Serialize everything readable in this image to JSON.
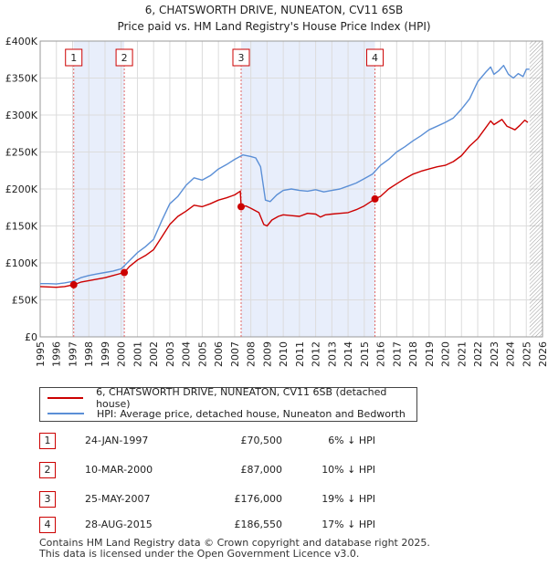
{
  "chart_data": {
    "type": "line",
    "title": "6, CHATSWORTH DRIVE, NUNEATON, CV11 6SB",
    "subtitle": "Price paid vs. HM Land Registry's House Price Index (HPI)",
    "xlabel": "",
    "ylabel": "",
    "xlim": [
      1995,
      2026
    ],
    "ylim": [
      0,
      400000
    ],
    "x_ticks": [
      "1995",
      "1996",
      "1997",
      "1998",
      "1999",
      "2000",
      "2001",
      "2002",
      "2003",
      "2004",
      "2005",
      "2006",
      "2007",
      "2008",
      "2009",
      "2010",
      "2011",
      "2012",
      "2013",
      "2014",
      "2015",
      "2016",
      "2017",
      "2018",
      "2019",
      "2020",
      "2021",
      "2022",
      "2023",
      "2024",
      "2025",
      "2026"
    ],
    "y_ticks": [
      {
        "value": 0,
        "label": "£0"
      },
      {
        "value": 50000,
        "label": "£50K"
      },
      {
        "value": 100000,
        "label": "£100K"
      },
      {
        "value": 150000,
        "label": "£150K"
      },
      {
        "value": 200000,
        "label": "£200K"
      },
      {
        "value": 250000,
        "label": "£250K"
      },
      {
        "value": 300000,
        "label": "£300K"
      },
      {
        "value": 350000,
        "label": "£350K"
      },
      {
        "value": 400000,
        "label": "£400K"
      }
    ],
    "grid": true,
    "data_end_year": 2025.2,
    "shaded_periods": [
      [
        1997.07,
        2000.19
      ],
      [
        2007.4,
        2015.66
      ]
    ],
    "series": [
      {
        "name": "6, CHATSWORTH DRIVE, NUNEATON, CV11 6SB (detached house)",
        "color": "#cc0000",
        "x": [
          1995.0,
          1995.5,
          1996.0,
          1996.5,
          1997.07,
          1997.5,
          1998.0,
          1998.5,
          1999.0,
          1999.5,
          2000.19,
          2000.5,
          2001.0,
          2001.5,
          2002.0,
          2002.5,
          2003.0,
          2003.5,
          2004.0,
          2004.5,
          2005.0,
          2005.5,
          2006.0,
          2006.5,
          2007.0,
          2007.35,
          2007.4,
          2007.7,
          2008.0,
          2008.5,
          2008.8,
          2009.0,
          2009.3,
          2009.7,
          2010.0,
          2010.5,
          2011.0,
          2011.5,
          2012.0,
          2012.3,
          2012.6,
          2013.0,
          2013.5,
          2014.0,
          2014.5,
          2015.0,
          2015.66,
          2016.0,
          2016.5,
          2017.0,
          2017.5,
          2018.0,
          2018.5,
          2019.0,
          2019.5,
          2020.0,
          2020.5,
          2021.0,
          2021.5,
          2022.0,
          2022.5,
          2022.8,
          2023.0,
          2023.5,
          2023.8,
          2024.0,
          2024.3,
          2024.6,
          2024.9,
          2025.1
        ],
        "values": [
          68000,
          67500,
          67000,
          68000,
          70500,
          74000,
          76000,
          78000,
          80000,
          83000,
          87000,
          95000,
          104000,
          110000,
          118000,
          135000,
          152000,
          163000,
          170000,
          178000,
          176000,
          180000,
          185000,
          188000,
          192000,
          197000,
          176000,
          177000,
          174000,
          168000,
          152000,
          150000,
          158000,
          163000,
          165000,
          164000,
          163000,
          167000,
          166000,
          162000,
          165000,
          166000,
          167000,
          168000,
          172000,
          177000,
          186550,
          190000,
          200000,
          207000,
          214000,
          220000,
          224000,
          227000,
          230000,
          232000,
          237000,
          245000,
          258000,
          268000,
          283000,
          292000,
          287000,
          294000,
          285000,
          283000,
          280000,
          286000,
          293000,
          290000
        ]
      },
      {
        "name": "HPI: Average price, detached house, Nuneaton and Bedworth",
        "color": "#5b8fd6",
        "x": [
          1995.0,
          1995.5,
          1996.0,
          1996.5,
          1997.0,
          1997.5,
          1998.0,
          1998.5,
          1999.0,
          1999.5,
          2000.0,
          2000.5,
          2001.0,
          2001.5,
          2002.0,
          2002.5,
          2003.0,
          2003.5,
          2004.0,
          2004.5,
          2005.0,
          2005.5,
          2006.0,
          2006.5,
          2007.0,
          2007.5,
          2008.0,
          2008.3,
          2008.6,
          2008.9,
          2009.2,
          2009.6,
          2010.0,
          2010.5,
          2011.0,
          2011.5,
          2012.0,
          2012.5,
          2013.0,
          2013.5,
          2014.0,
          2014.5,
          2015.0,
          2015.5,
          2016.0,
          2016.5,
          2017.0,
          2017.5,
          2018.0,
          2018.5,
          2019.0,
          2019.5,
          2020.0,
          2020.5,
          2021.0,
          2021.5,
          2022.0,
          2022.5,
          2022.8,
          2023.0,
          2023.3,
          2023.6,
          2023.9,
          2024.2,
          2024.5,
          2024.8,
          2025.0,
          2025.2
        ],
        "values": [
          72000,
          72000,
          71500,
          73000,
          75000,
          80000,
          83000,
          85000,
          87000,
          89000,
          92000,
          103000,
          114000,
          122000,
          132000,
          157000,
          180000,
          190000,
          205000,
          215000,
          212000,
          218000,
          227000,
          233000,
          240000,
          246000,
          244000,
          242000,
          230000,
          185000,
          183000,
          192000,
          198000,
          200000,
          198000,
          197000,
          199000,
          196000,
          198000,
          200000,
          204000,
          208000,
          214000,
          220000,
          232000,
          240000,
          250000,
          257000,
          265000,
          272000,
          280000,
          285000,
          290000,
          296000,
          308000,
          322000,
          345000,
          358000,
          365000,
          355000,
          360000,
          367000,
          355000,
          350000,
          356000,
          352000,
          362000,
          362000
        ]
      }
    ],
    "transactions": [
      {
        "num": "1",
        "year": 1997.07,
        "value": 70500,
        "date": "24-JAN-1997",
        "price": "£70,500",
        "hpi": "6% ↓ HPI"
      },
      {
        "num": "2",
        "year": 2000.19,
        "value": 87000,
        "date": "10-MAR-2000",
        "price": "£87,000",
        "hpi": "10% ↓ HPI"
      },
      {
        "num": "3",
        "year": 2007.4,
        "value": 176000,
        "date": "25-MAY-2007",
        "price": "£176,000",
        "hpi": "19% ↓ HPI"
      },
      {
        "num": "4",
        "year": 2015.66,
        "value": 186550,
        "date": "28-AUG-2015",
        "price": "£186,550",
        "hpi": "17% ↓ HPI"
      }
    ]
  },
  "legend": {
    "property_label": "6, CHATSWORTH DRIVE, NUNEATON, CV11 6SB (detached house)",
    "hpi_label": "HPI: Average price, detached house, Nuneaton and Bedworth"
  },
  "footer": {
    "line1": "Contains HM Land Registry data © Crown copyright and database right 2025.",
    "line2": "This data is licensed under the Open Government Licence v3.0."
  }
}
